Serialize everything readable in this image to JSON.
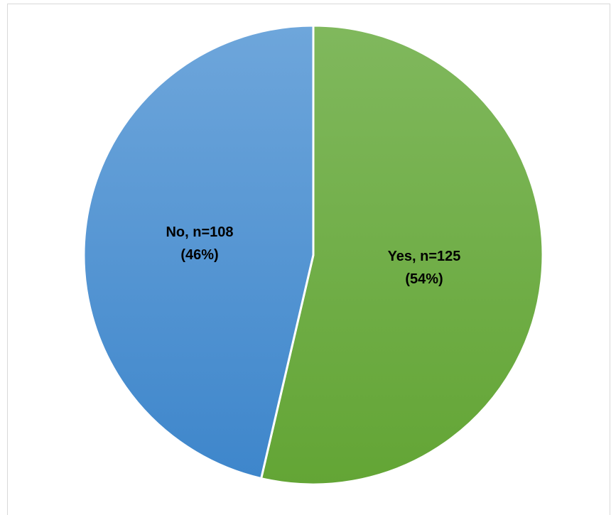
{
  "chart_data": {
    "type": "pie",
    "slices": [
      {
        "category": "Yes",
        "count": 125,
        "percent": 54,
        "color": "#70ad47",
        "label_line1": "Yes, n=125",
        "label_line2": "(54%)"
      },
      {
        "category": "No",
        "count": 108,
        "percent": 46,
        "color": "#5b9bd5",
        "label_line1": "No, n=108",
        "label_line2": "(46%)"
      }
    ],
    "legend": "none"
  }
}
